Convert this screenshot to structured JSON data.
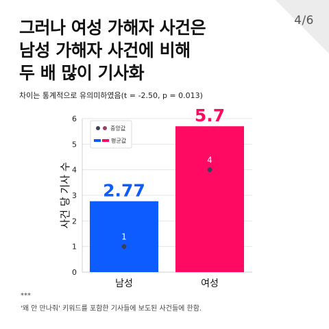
{
  "page": {
    "number": "4/6",
    "title_lines": [
      "그러나 여성 가해자 사건은",
      "남성 가해자 사건에 비해",
      "두 배 많이 기사화"
    ],
    "subtitle": "차이는 통계적으로 유의미하였음(t = -2.50, p = 0.013)",
    "footnote_mark": "***",
    "footnote": "'왜 안 만나줘' 키워드를 포함한 기사들에 보도된 사건들에 한함."
  },
  "colors": {
    "male_bar": "#0d5cff",
    "female_bar": "#ff0a62",
    "median_dot": "#3b3f5c",
    "median_legend_dot2": "#9a3f63",
    "grid": "#e6e6e6"
  },
  "chart_data": {
    "type": "bar",
    "categories": [
      "남성",
      "여성"
    ],
    "ylabel": "사건 당 기사 수",
    "ylim": [
      0,
      6
    ],
    "yticks": [
      0,
      1,
      2,
      3,
      4,
      5,
      6
    ],
    "grid": true,
    "legend_position": "top-left",
    "series": [
      {
        "name": "평균값",
        "values": [
          2.77,
          5.7
        ],
        "labels": [
          "2.77",
          "5.7"
        ]
      },
      {
        "name": "중앙값",
        "values": [
          1,
          4
        ],
        "labels": [
          "1",
          "4"
        ]
      }
    ]
  }
}
